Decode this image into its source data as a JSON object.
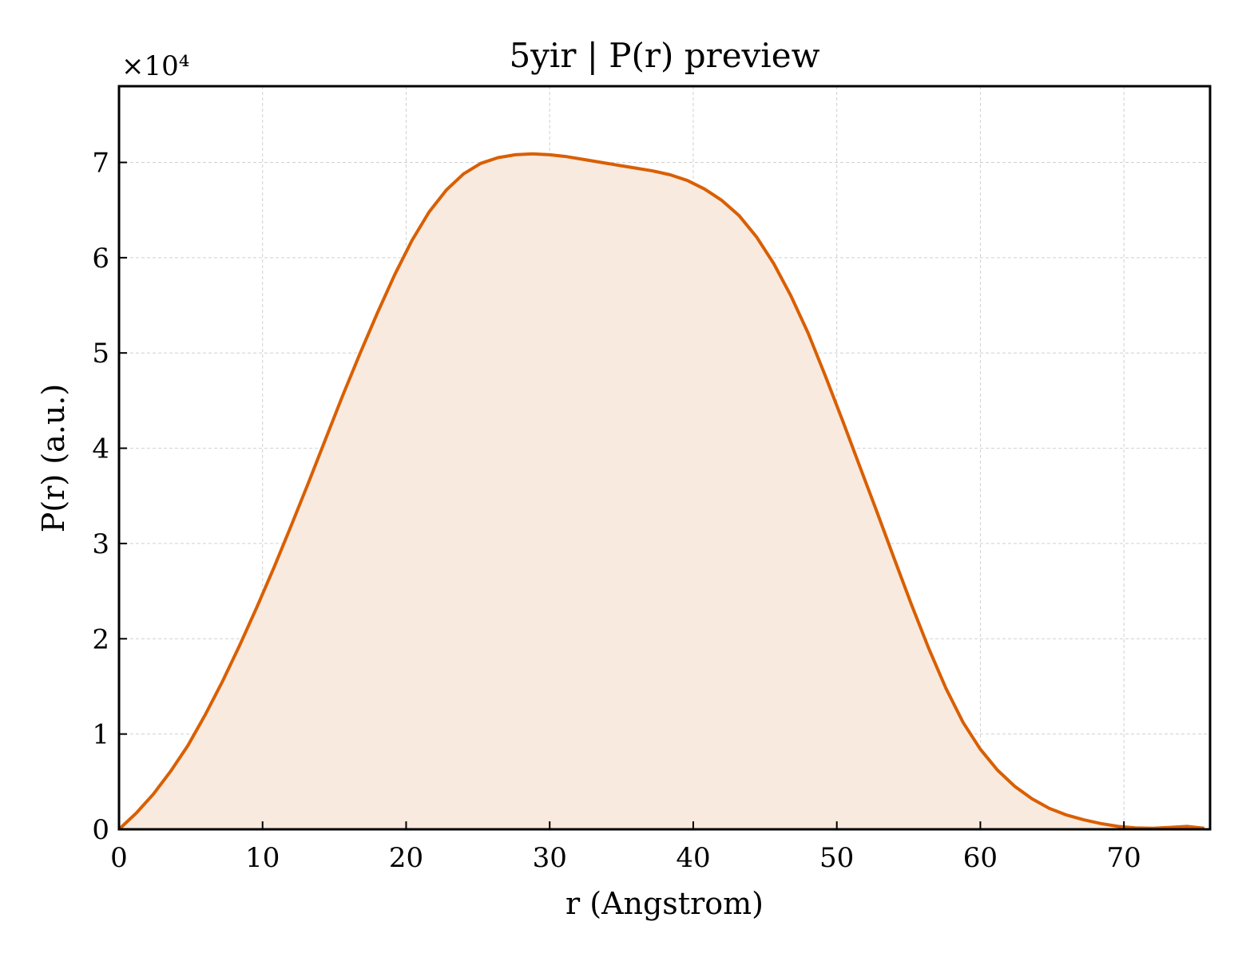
{
  "chart_data": {
    "type": "area",
    "title": "5yir | P(r) preview",
    "xlabel": "r (Angstrom)",
    "ylabel": "P(r) (a.u.)",
    "y_multiplier_label": "×10⁴",
    "y_scale": 10000,
    "xlim": [
      0,
      76
    ],
    "ylim": [
      0,
      78000
    ],
    "xticks": [
      0,
      10,
      20,
      30,
      40,
      50,
      60,
      70
    ],
    "yticks": [
      0,
      1,
      2,
      3,
      4,
      5,
      6,
      7
    ],
    "grid": true,
    "legend": "none",
    "colors": {
      "line": "#d95f02",
      "fill": "#f9eadf"
    },
    "series": [
      {
        "x": [
          0,
          1.2,
          2.4,
          3.6,
          4.8,
          6,
          7.2,
          8.4,
          9.6,
          10.8,
          12,
          13.2,
          14.4,
          15.6,
          16.8,
          18,
          19.2,
          20.4,
          21.6,
          22.8,
          24,
          25.2,
          26.4,
          27.6,
          28.8,
          30,
          31.2,
          32.4,
          33.6,
          34.8,
          36,
          37.2,
          38.4,
          39.6,
          40.8,
          42,
          43.2,
          44.4,
          45.6,
          46.8,
          48,
          49.2,
          50.4,
          51.6,
          52.8,
          54,
          55.2,
          56.4,
          57.6,
          58.8,
          60,
          61.2,
          62.4,
          63.6,
          64.8,
          66,
          67.2,
          68.4,
          69.6,
          70.8,
          72,
          73.2,
          74.4,
          75.6
        ],
        "y": [
          0,
          1700,
          3700,
          6100,
          8800,
          12000,
          15500,
          19300,
          23300,
          27500,
          31900,
          36400,
          41000,
          45600,
          50000,
          54200,
          58200,
          61800,
          64800,
          67100,
          68800,
          69900,
          70500,
          70800,
          70900,
          70800,
          70600,
          70300,
          70000,
          69700,
          69400,
          69100,
          68700,
          68100,
          67200,
          66000,
          64400,
          62200,
          59400,
          56000,
          52100,
          47600,
          42900,
          38100,
          33300,
          28400,
          23600,
          19000,
          14800,
          11200,
          8400,
          6200,
          4500,
          3200,
          2200,
          1500,
          1000,
          600,
          300,
          150,
          100,
          200,
          300,
          100
        ]
      }
    ]
  }
}
